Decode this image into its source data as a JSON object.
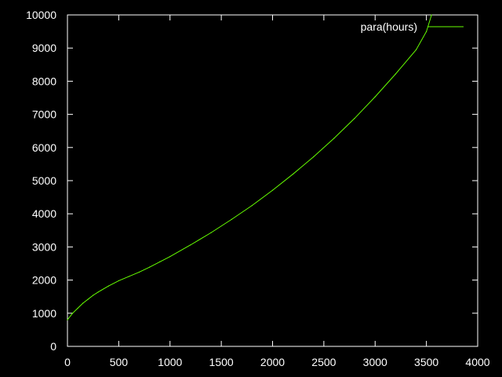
{
  "chart_data": {
    "type": "line",
    "title": "",
    "xlabel": "",
    "ylabel": "",
    "xlim": [
      0,
      4000
    ],
    "ylim": [
      0,
      10000
    ],
    "x_ticks": [
      "0",
      "500",
      "1000",
      "1500",
      "2000",
      "2500",
      "3000",
      "3500",
      "4000"
    ],
    "y_ticks": [
      "0",
      "1000",
      "2000",
      "3000",
      "4000",
      "5000",
      "6000",
      "7000",
      "8000",
      "9000",
      "10000"
    ],
    "grid": false,
    "legend_position": "top-right",
    "background_color": "#000000",
    "axis_color": "#ffffff",
    "series": [
      {
        "name": "para(hours)",
        "color": "#66ff00",
        "x": [
          0,
          50,
          100,
          150,
          200,
          250,
          300,
          400,
          500,
          600,
          700,
          800,
          900,
          1000,
          1200,
          1400,
          1600,
          1800,
          2000,
          2200,
          2400,
          2600,
          2800,
          3000,
          3200,
          3400,
          3500,
          3550
        ],
        "y": [
          800,
          1000,
          1150,
          1300,
          1420,
          1540,
          1640,
          1820,
          1980,
          2110,
          2240,
          2390,
          2550,
          2710,
          3060,
          3430,
          3830,
          4250,
          4710,
          5200,
          5720,
          6280,
          6880,
          7530,
          8220,
          8950,
          9500,
          10000
        ]
      }
    ]
  }
}
